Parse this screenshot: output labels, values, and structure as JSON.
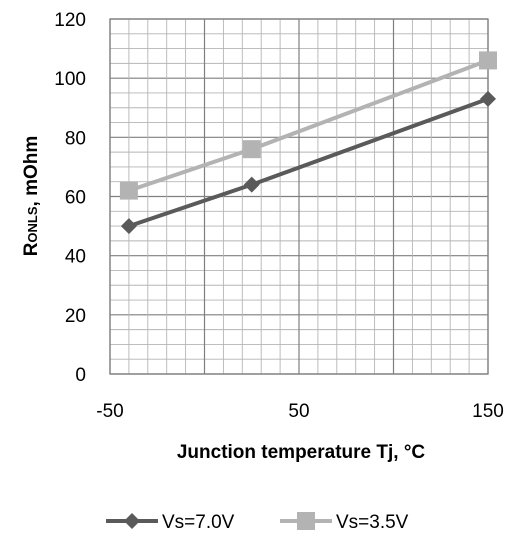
{
  "chart_data": {
    "type": "line",
    "xlabel": "Junction temperature Tj, °C",
    "ylabel_prefix": "R",
    "ylabel_subscript": "ONLS",
    "ylabel_suffix": ", mOhm",
    "xlim": [
      -50,
      150
    ],
    "ylim": [
      0,
      120
    ],
    "x_ticks": [
      "-50",
      "50",
      "150"
    ],
    "y_ticks": [
      "0",
      "20",
      "40",
      "60",
      "80",
      "100",
      "120"
    ],
    "grid": true,
    "legend_position": "bottom",
    "series": [
      {
        "name": "Vs=7.0V",
        "color": "#5a5a5a",
        "marker": "diamond",
        "x": [
          -40,
          25,
          150
        ],
        "y": [
          50,
          64,
          93
        ]
      },
      {
        "name": "Vs=3.5V",
        "color": "#b3b3b3",
        "marker": "square",
        "x": [
          -40,
          25,
          150
        ],
        "y": [
          62,
          76,
          106
        ]
      }
    ]
  }
}
